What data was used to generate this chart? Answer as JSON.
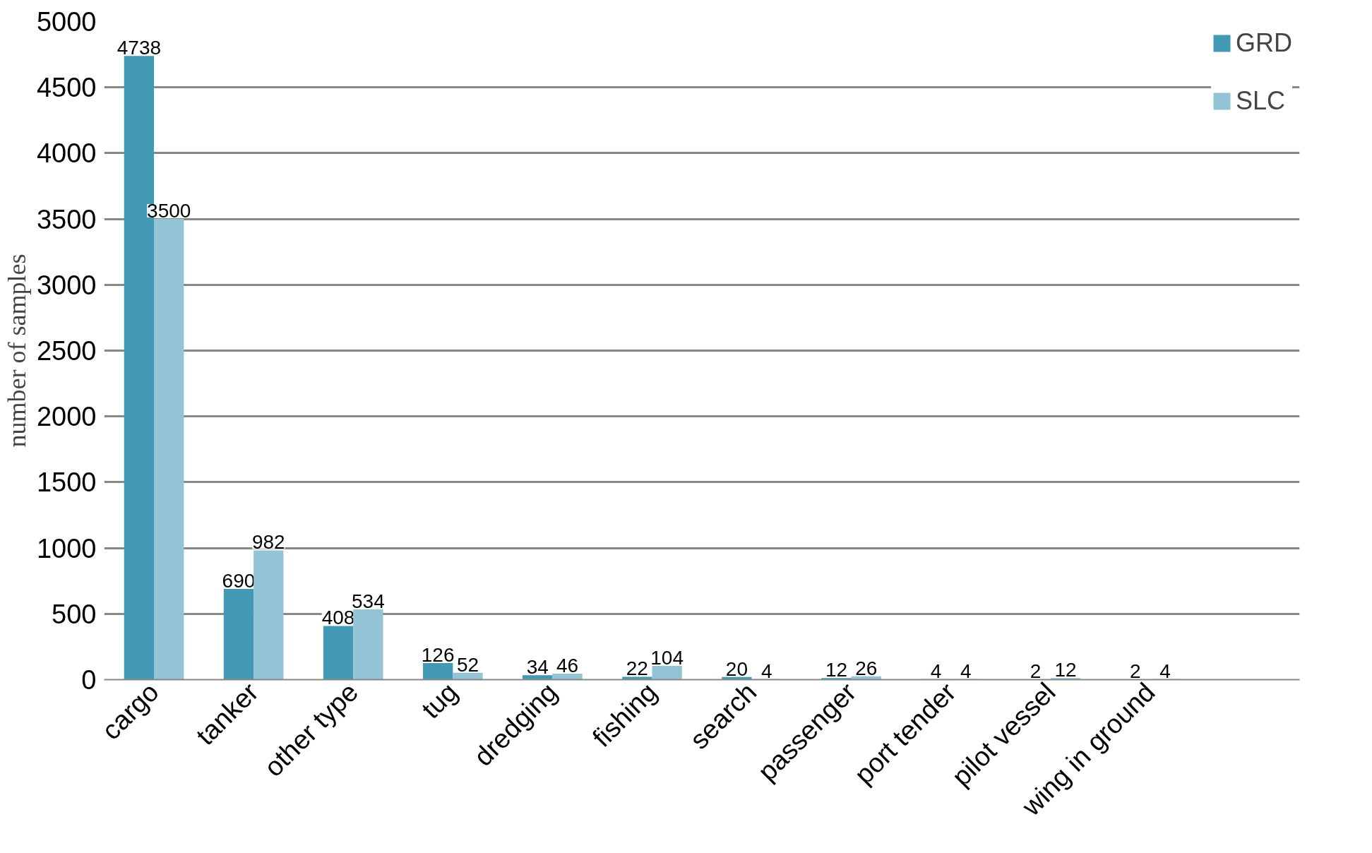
{
  "chart_data": {
    "type": "bar",
    "ylabel": "number of samples",
    "categories": [
      "cargo",
      "tanker",
      "other type",
      "tug",
      "dredging",
      "fishing",
      "search",
      "passenger",
      "port tender",
      "pilot vessel",
      "wing in ground",
      null
    ],
    "series": [
      {
        "name": "GRD",
        "color": "#4299b3",
        "values": [
          4738,
          690,
          408,
          126,
          34,
          22,
          20,
          12,
          4,
          2,
          2,
          null
        ]
      },
      {
        "name": "SLC",
        "color": "#92c4d5",
        "values": [
          3500,
          982,
          534,
          52,
          46,
          104,
          4,
          26,
          4,
          12,
          4,
          null
        ]
      }
    ],
    "ylim": [
      0,
      5000
    ],
    "yticks": [
      0,
      500,
      1000,
      1500,
      2000,
      2500,
      3000,
      3500,
      4000,
      4500,
      5000
    ],
    "grid": "y",
    "legend": "top right",
    "data_labels": true
  }
}
